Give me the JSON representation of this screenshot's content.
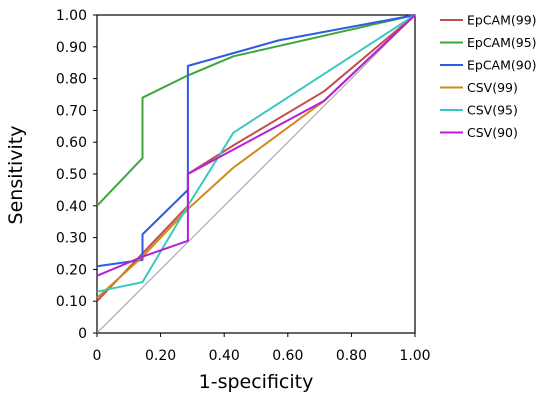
{
  "chart_data": {
    "type": "line",
    "xlabel": "1-specificity",
    "ylabel": "Sensitivity",
    "xlim": [
      0,
      1
    ],
    "ylim": [
      0,
      1
    ],
    "x_ticks": [
      "0",
      "0.20",
      "0.40",
      "0.60",
      "0.80",
      "1.00"
    ],
    "y_ticks": [
      "0",
      "0.10",
      "0.20",
      "0.30",
      "0.40",
      "0.50",
      "0.60",
      "0.70",
      "0.80",
      "0.90",
      "1.00"
    ],
    "legend_position": "right",
    "reference_line": {
      "x": [
        0,
        1
      ],
      "y": [
        0,
        1
      ],
      "color": "#a0a0a0"
    },
    "series": [
      {
        "name": "EpCAM(99)",
        "color": "#c0504d",
        "points": [
          [
            0,
            0.1
          ],
          [
            0.143,
            0.25
          ],
          [
            0.286,
            0.4
          ],
          [
            0.286,
            0.5
          ],
          [
            0.429,
            0.59
          ],
          [
            0.714,
            0.76
          ],
          [
            1.0,
            1.0
          ]
        ]
      },
      {
        "name": "EpCAM(95)",
        "color": "#3ca63c",
        "points": [
          [
            0,
            0.4
          ],
          [
            0.143,
            0.55
          ],
          [
            0.143,
            0.74
          ],
          [
            0.286,
            0.81
          ],
          [
            0.429,
            0.87
          ],
          [
            1.0,
            1.0
          ]
        ]
      },
      {
        "name": "EpCAM(90)",
        "color": "#2d5be3",
        "points": [
          [
            0,
            0.21
          ],
          [
            0.143,
            0.23
          ],
          [
            0.143,
            0.31
          ],
          [
            0.286,
            0.45
          ],
          [
            0.286,
            0.84
          ],
          [
            0.571,
            0.92
          ],
          [
            1.0,
            1.0
          ]
        ]
      },
      {
        "name": "CSV(99)",
        "color": "#d08a1c",
        "points": [
          [
            0,
            0.11
          ],
          [
            0.143,
            0.24
          ],
          [
            0.286,
            0.39
          ],
          [
            0.429,
            0.52
          ],
          [
            0.714,
            0.73
          ],
          [
            1.0,
            1.0
          ]
        ]
      },
      {
        "name": "CSV(95)",
        "color": "#3cc8c0",
        "points": [
          [
            0,
            0.13
          ],
          [
            0.143,
            0.16
          ],
          [
            0.286,
            0.4
          ],
          [
            0.429,
            0.63
          ],
          [
            1.0,
            1.0
          ]
        ]
      },
      {
        "name": "CSV(90)",
        "color": "#b51fd8",
        "points": [
          [
            0,
            0.18
          ],
          [
            0.143,
            0.24
          ],
          [
            0.286,
            0.29
          ],
          [
            0.286,
            0.5
          ],
          [
            0.714,
            0.73
          ],
          [
            1.0,
            1.0
          ]
        ]
      }
    ]
  }
}
